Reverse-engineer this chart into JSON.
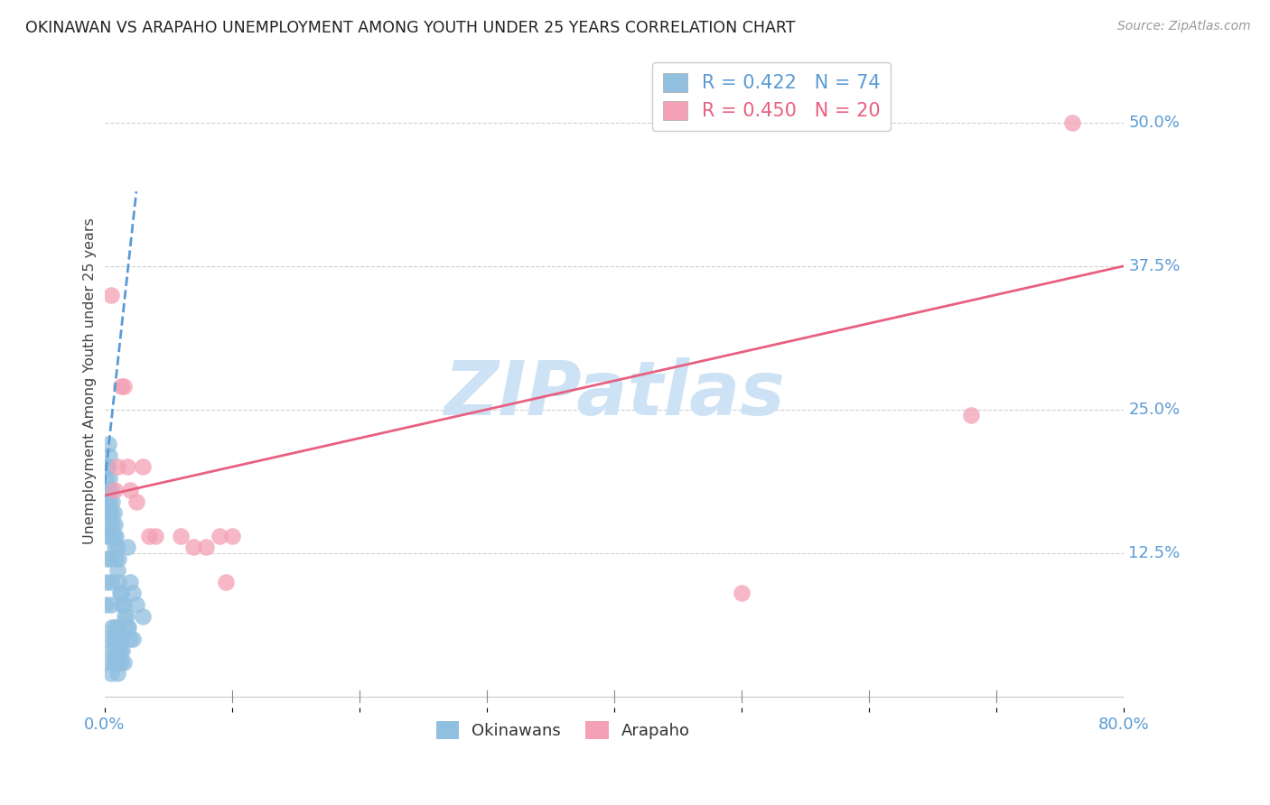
{
  "title": "OKINAWAN VS ARAPAHO UNEMPLOYMENT AMONG YOUTH UNDER 25 YEARS CORRELATION CHART",
  "source": "Source: ZipAtlas.com",
  "ylabel": "Unemployment Among Youth under 25 years",
  "xlim": [
    0.0,
    0.8
  ],
  "ylim": [
    -0.01,
    0.56
  ],
  "ytick_vals": [
    0.0,
    0.125,
    0.25,
    0.375,
    0.5
  ],
  "ytick_labels": [
    "",
    "12.5%",
    "25.0%",
    "37.5%",
    "50.0%"
  ],
  "xtick_vals": [
    0.0,
    0.1,
    0.2,
    0.3,
    0.4,
    0.5,
    0.6,
    0.7,
    0.8
  ],
  "xtick_labels": [
    "0.0%",
    "",
    "",
    "",
    "",
    "",
    "",
    "",
    "80.0%"
  ],
  "okinawan_color": "#91bfdf",
  "arapaho_color": "#f4a0b5",
  "trend_blue": "#5b9bd5",
  "trend_pink": "#e86080",
  "background_color": "#ffffff",
  "grid_color": "#d0d0d0",
  "tick_color": "#5b9bd5",
  "watermark_color": "#cde3f5",
  "arapaho_line_start_y": 0.175,
  "arapaho_line_end_y": 0.375,
  "okinawan_line_x1": 0.0,
  "okinawan_line_y1": 0.185,
  "okinawan_line_x2": 0.025,
  "okinawan_line_y2": 0.44,
  "ok_x": [
    0.0005,
    0.001,
    0.001,
    0.0015,
    0.002,
    0.002,
    0.002,
    0.0025,
    0.003,
    0.003,
    0.003,
    0.003,
    0.004,
    0.004,
    0.004,
    0.005,
    0.005,
    0.005,
    0.006,
    0.006,
    0.007,
    0.007,
    0.008,
    0.008,
    0.009,
    0.009,
    0.01,
    0.01,
    0.011,
    0.011,
    0.012,
    0.013,
    0.014,
    0.015,
    0.016,
    0.017,
    0.018,
    0.019,
    0.02,
    0.022,
    0.001,
    0.001,
    0.002,
    0.002,
    0.003,
    0.003,
    0.004,
    0.004,
    0.005,
    0.005,
    0.006,
    0.006,
    0.007,
    0.007,
    0.008,
    0.008,
    0.009,
    0.009,
    0.01,
    0.01,
    0.011,
    0.011,
    0.012,
    0.013,
    0.013,
    0.014,
    0.015,
    0.018,
    0.02,
    0.022,
    0.025,
    0.03,
    0.01,
    0.005
  ],
  "ok_y": [
    0.03,
    0.05,
    0.08,
    0.1,
    0.12,
    0.14,
    0.17,
    0.16,
    0.15,
    0.18,
    0.2,
    0.22,
    0.19,
    0.21,
    0.17,
    0.16,
    0.14,
    0.18,
    0.15,
    0.17,
    0.14,
    0.16,
    0.13,
    0.15,
    0.12,
    0.14,
    0.11,
    0.13,
    0.1,
    0.12,
    0.09,
    0.09,
    0.08,
    0.08,
    0.07,
    0.07,
    0.06,
    0.06,
    0.05,
    0.05,
    0.16,
    0.19,
    0.17,
    0.2,
    0.18,
    0.16,
    0.14,
    0.12,
    0.1,
    0.08,
    0.06,
    0.04,
    0.03,
    0.05,
    0.04,
    0.06,
    0.03,
    0.05,
    0.04,
    0.06,
    0.03,
    0.05,
    0.04,
    0.03,
    0.05,
    0.04,
    0.03,
    0.13,
    0.1,
    0.09,
    0.08,
    0.07,
    0.02,
    0.02
  ],
  "ara_x": [
    0.005,
    0.008,
    0.01,
    0.013,
    0.015,
    0.018,
    0.02,
    0.025,
    0.03,
    0.035,
    0.04,
    0.06,
    0.07,
    0.08,
    0.09,
    0.095,
    0.1,
    0.5,
    0.68,
    0.76
  ],
  "ara_y": [
    0.35,
    0.18,
    0.2,
    0.27,
    0.27,
    0.2,
    0.18,
    0.17,
    0.2,
    0.14,
    0.14,
    0.14,
    0.13,
    0.13,
    0.14,
    0.1,
    0.14,
    0.09,
    0.245,
    0.5
  ]
}
